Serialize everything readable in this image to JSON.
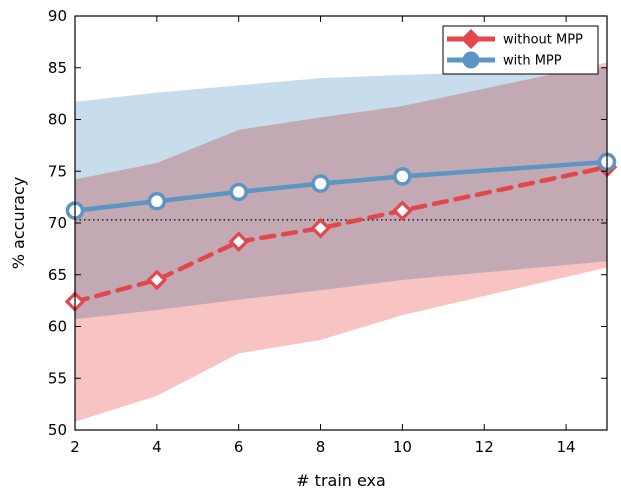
{
  "chart_data": {
    "type": "line",
    "title": "",
    "xlabel": "# train exa",
    "ylabel": "% accuracy",
    "xlim": [
      2,
      15
    ],
    "ylim": [
      50,
      90
    ],
    "x_ticks": [
      2,
      4,
      6,
      8,
      10,
      12,
      14
    ],
    "y_ticks": [
      50,
      55,
      60,
      65,
      70,
      75,
      80,
      85,
      90
    ],
    "x_tick_labels": [
      "2",
      "4",
      "6",
      "8",
      "10",
      "12",
      "14"
    ],
    "y_tick_labels": [
      "50",
      "55",
      "60",
      "65",
      "70",
      "75",
      "80",
      "85",
      "90"
    ],
    "grid": false,
    "legend_position": "top-right",
    "reference_line": {
      "y": 70.3,
      "style": "dotted",
      "color": "#000000"
    },
    "series": [
      {
        "name": "without MPP",
        "color": "#e2474b",
        "band_color": "#f7b8b9",
        "line_style": "dashed",
        "marker": "diamond",
        "x": [
          2,
          4,
          6,
          8,
          10,
          15
        ],
        "values": [
          62.4,
          64.5,
          68.2,
          69.5,
          71.2,
          75.4
        ],
        "band_upper": [
          74.2,
          75.8,
          79.0,
          80.2,
          81.3,
          85.5
        ],
        "band_lower": [
          50.8,
          53.3,
          57.4,
          58.7,
          61.1,
          65.7
        ]
      },
      {
        "name": "with MPP",
        "color": "#5c94c4",
        "band_color": "#c5dbea",
        "line_style": "solid",
        "marker": "circle",
        "x": [
          2,
          4,
          6,
          8,
          10,
          15
        ],
        "values": [
          71.2,
          72.1,
          73.0,
          73.8,
          74.5,
          75.9
        ],
        "band_upper": [
          81.7,
          82.6,
          83.3,
          84.0,
          84.3,
          85.0
        ],
        "band_lower": [
          60.7,
          61.6,
          62.6,
          63.5,
          64.5,
          66.3
        ]
      }
    ]
  }
}
